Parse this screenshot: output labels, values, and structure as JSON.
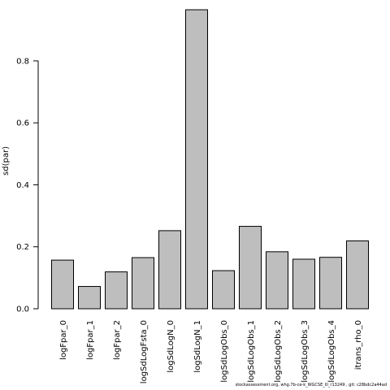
{
  "chart_data": {
    "type": "bar",
    "categories": [
      "logFpar_0",
      "logFpar_1",
      "logFpar_2",
      "logSdLogFsta_0",
      "logSdLogN_0",
      "logSdLogN_1",
      "logSdLogObs_0",
      "logSdLogObs_1",
      "logSdLogObs_2",
      "logSdLogObs_3",
      "logSdLogObs_4",
      "itrans_rho_0"
    ],
    "values": [
      0.157,
      0.072,
      0.119,
      0.165,
      0.252,
      0.965,
      0.123,
      0.266,
      0.184,
      0.16,
      0.166,
      0.219
    ],
    "ylabel": "sd(par)",
    "xlabel": "",
    "title": "",
    "ylim": [
      0,
      0.965
    ],
    "yticks": [
      0.0,
      0.2,
      0.4,
      0.6,
      0.8
    ],
    "ytick_labels": [
      "0.0",
      "0.2",
      "0.4",
      "0.6",
      "0.8"
    ],
    "grid": false,
    "bar_fill": "#bebebe",
    "bar_stroke": "#000000"
  },
  "footer": "stockassessment.org, whg.7b-ce-k_WGCSE_lll_r13249 , git: c28bdc2a44ad"
}
